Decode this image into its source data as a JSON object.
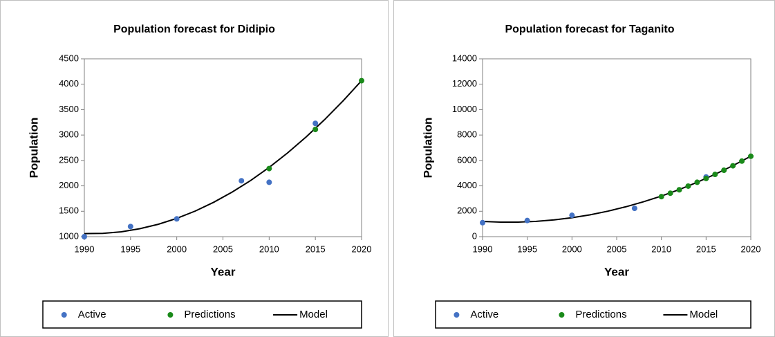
{
  "chart_data": [
    {
      "type": "scatter",
      "title": "Population forecast for Didipio",
      "x_label": "Year",
      "y_label": "Population",
      "xlim": [
        1990,
        2020
      ],
      "xticks": [
        1990,
        1995,
        2000,
        2005,
        2010,
        2015,
        2020
      ],
      "ylim": [
        1000,
        4500
      ],
      "yticks": [
        1000,
        1500,
        2000,
        2500,
        3000,
        3500,
        4000,
        4500
      ],
      "grid": false,
      "legend": "bottom",
      "series": [
        {
          "name": "Active",
          "color": "#4472c4",
          "mode": "markers",
          "x": [
            1990,
            1995,
            2000,
            2007,
            2010,
            2015
          ],
          "values": [
            1000,
            1200,
            1350,
            2100,
            2070,
            3230
          ]
        },
        {
          "name": "Predictions",
          "color": "#1a8a1a",
          "mode": "markers",
          "x": [
            2010,
            2015,
            2020
          ],
          "values": [
            2340,
            3110,
            4070
          ]
        },
        {
          "name": "Model",
          "color": "#000000",
          "mode": "line",
          "x": [
            1990,
            1992,
            1994,
            1996,
            1998,
            2000,
            2002,
            2004,
            2006,
            2008,
            2010,
            2012,
            2014,
            2016,
            2018,
            2020
          ],
          "values": [
            1060,
            1064,
            1096,
            1156,
            1244,
            1360,
            1504,
            1677,
            1878,
            2106,
            2363,
            2649,
            2962,
            3303,
            3673,
            4070
          ]
        }
      ]
    },
    {
      "type": "scatter",
      "title": "Population forecast for Taganito",
      "x_label": "Year",
      "y_label": "Population",
      "xlim": [
        1990,
        2020
      ],
      "xticks": [
        1990,
        1995,
        2000,
        2005,
        2010,
        2015,
        2020
      ],
      "ylim": [
        0,
        14000
      ],
      "yticks": [
        0,
        2000,
        4000,
        6000,
        8000,
        10000,
        12000,
        14000
      ],
      "grid": false,
      "legend": "bottom",
      "series": [
        {
          "name": "Active",
          "color": "#4472c4",
          "mode": "markers",
          "x": [
            1990,
            1995,
            2000,
            2007,
            2015
          ],
          "values": [
            1100,
            1270,
            1680,
            2230,
            4700
          ]
        },
        {
          "name": "Predictions",
          "color": "#1a8a1a",
          "mode": "markers",
          "x": [
            2010,
            2011,
            2012,
            2013,
            2014,
            2015,
            2016,
            2017,
            2018,
            2019,
            2020
          ],
          "values": [
            3150,
            3420,
            3690,
            3980,
            4280,
            4580,
            4900,
            5230,
            5580,
            5950,
            6330
          ]
        },
        {
          "name": "Model",
          "color": "#000000",
          "mode": "line",
          "x": [
            1990,
            1992,
            1994,
            1996,
            1998,
            2000,
            2002,
            2004,
            2006,
            2008,
            2010,
            2012,
            2014,
            2016,
            2018,
            2020
          ],
          "values": [
            1200,
            1144,
            1146,
            1204,
            1318,
            1490,
            1718,
            2004,
            2346,
            2744,
            3200,
            3712,
            4282,
            4908,
            5590,
            6330
          ]
        }
      ]
    }
  ]
}
